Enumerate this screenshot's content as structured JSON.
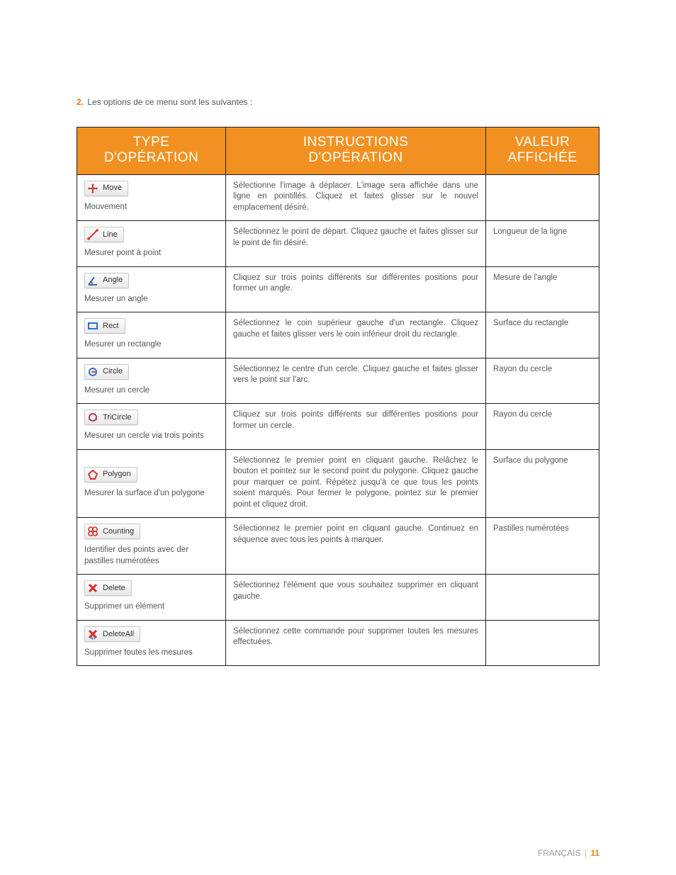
{
  "intro": {
    "number": "2.",
    "text": "Les options de ce menu sont les suivantes :"
  },
  "table": {
    "headers": {
      "type_l1": "TYPE",
      "type_l2": "D'OPÉRATION",
      "instr_l1": "INSTRUCTIONS",
      "instr_l2": "D'OPÉRATION",
      "value_l1": "VALEUR",
      "value_l2": "AFFICHÉE"
    },
    "rows": [
      {
        "icon": "move",
        "pill_label": "Move",
        "op_desc": "Mouvement",
        "instructions": "Sélectionne l'image à déplacer. L'image sera affichée dans une ligne en pointillés. Cliquez et faites glisser sur le nouvel emplacement désiré.",
        "value": "",
        "center_v": false
      },
      {
        "icon": "line",
        "pill_label": "Line",
        "op_desc": "Mesurer point à point",
        "instructions": "Sélectionnez le point de départ. Cliquez gauche et faites glisser sur le point de fin désiré.",
        "value": "Longueur de la ligne",
        "center_v": false
      },
      {
        "icon": "angle",
        "pill_label": "Angle",
        "op_desc": "Mesurer un angle",
        "instructions": "Cliquez sur trois points différents sur différentes positions pour former un angle.",
        "value": "Mesure de l'angle",
        "center_v": false
      },
      {
        "icon": "rect",
        "pill_label": "Rect",
        "op_desc": "Mesurer un rectangle",
        "instructions": "Sélectionnez le coin supérieur gauche d'un rectangle. Cliquez gauche et faites glisser vers le coin inférieur droit du rectangle.",
        "value": "Surface du rectangle",
        "center_v": false
      },
      {
        "icon": "circle",
        "pill_label": "Circle",
        "op_desc": "Mesurer un cercle",
        "instructions": "Sélectionnez le centre d'un cercle. Cliquez gauche et faites glisser vers le point sur l'arc.",
        "value": "Rayon du cercle",
        "center_v": false
      },
      {
        "icon": "tricircle",
        "pill_label": "TriCircle",
        "op_desc": "Mesurer un cercle via trois points",
        "instructions": "Cliquez sur trois points différents sur différentes positions pour former un cercle.",
        "value": "Rayon du cercle",
        "center_v": false
      },
      {
        "icon": "polygon",
        "pill_label": "Polygon",
        "op_desc": "Mesurer la surface d'un polygone",
        "instructions": "Sélectionnez le premier point en cliquant gauche. Relâchez le bouton et pointez sur le second point du polygone. Cliquez gauche pour marquer ce point. Répétez jusqu'à ce que tous les points soient marqués. Pour fermer le polygone, pointez sur le premier point et cliquez droit.",
        "value": "Surface du polygone",
        "center_v": true
      },
      {
        "icon": "counting",
        "pill_label": "Counting",
        "op_desc": "Identifier des points avec der pastilles numérotées",
        "instructions": "Sélectionnez le premier point en cliquant gauche. Continuez en séquence avec tous les points à marquer.",
        "value": "Pastilles numérotées",
        "center_v": false
      },
      {
        "icon": "delete",
        "pill_label": "Delete",
        "op_desc": "Supprimer un élément",
        "instructions": "Sélectionnez l'élément que vous souhaitez supprimer en cliquant gauche.",
        "value": "",
        "center_v": false
      },
      {
        "icon": "deleteall",
        "pill_label": "DeleteAll",
        "op_desc": "Supprimer toutes les mesures",
        "instructions": "Sélectionnez cette commande pour supprimer toutes les mesures effectuées.",
        "value": "",
        "center_v": false
      }
    ]
  },
  "footer": {
    "lang": "FRANÇAIS",
    "page": "11"
  },
  "colors": {
    "header_bg": "#f29121",
    "header_text": "#ffffff",
    "border": "#231f20",
    "body_text": "#555555",
    "accent": "#e87722",
    "footer_gray": "#9b9b9b"
  }
}
